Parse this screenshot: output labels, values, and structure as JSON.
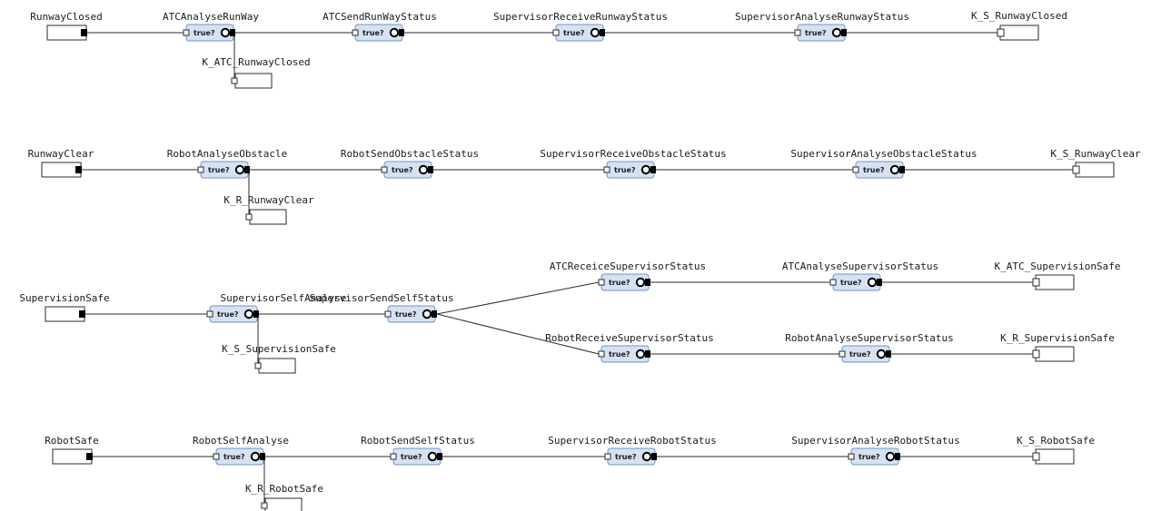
{
  "block_text": "true?",
  "colors": {
    "block_fill": "#d6e2f2",
    "block_border": "#6f93c5",
    "wire": "#2b2b2b"
  },
  "rows": [
    {
      "source": "RunwayClosed",
      "blocks": [
        "ATCAnalyseRunWay",
        "ATCSendRunWayStatus",
        "SupervisorReceiveRunwayStatus",
        "SupervisorAnalyseRunwayStatus"
      ],
      "branch_sink": "K_ATC_RunwayClosed",
      "sink": "K_S_RunwayClosed"
    },
    {
      "source": "RunwayClear",
      "blocks": [
        "RobotAnalyseObstacle",
        "RobotSendObstacleStatus",
        "SupervisorReceiveObstacleStatus",
        "SupervisorAnalyseObstacleStatus"
      ],
      "branch_sink": "K_R_RunwayClear",
      "sink": "K_S_RunwayClear"
    },
    {
      "source": "SupervisionSafe",
      "blocks": [
        "SupervisorSelfAnalyse",
        "SupervisorSendSelfStatus"
      ],
      "branch_sink": "K_S_SupervisionSafe",
      "upper_blocks": [
        "ATCReceiceSupervisorStatus",
        "ATCAnalyseSupervisorStatus"
      ],
      "upper_sink": "K_ATC_SupervisionSafe",
      "lower_blocks": [
        "RobotReceiveSupervisorStatus",
        "RobotAnalyseSupervisorStatus"
      ],
      "lower_sink": "K_R_SupervisionSafe"
    },
    {
      "source": "RobotSafe",
      "blocks": [
        "RobotSelfAnalyse",
        "RobotSendSelfStatus",
        "SupervisorReceiveRobotStatus",
        "SupervisorAnalyseRobotStatus"
      ],
      "branch_sink": "K_R_RobotSafe",
      "sink": "K_S_RobotSafe"
    }
  ]
}
